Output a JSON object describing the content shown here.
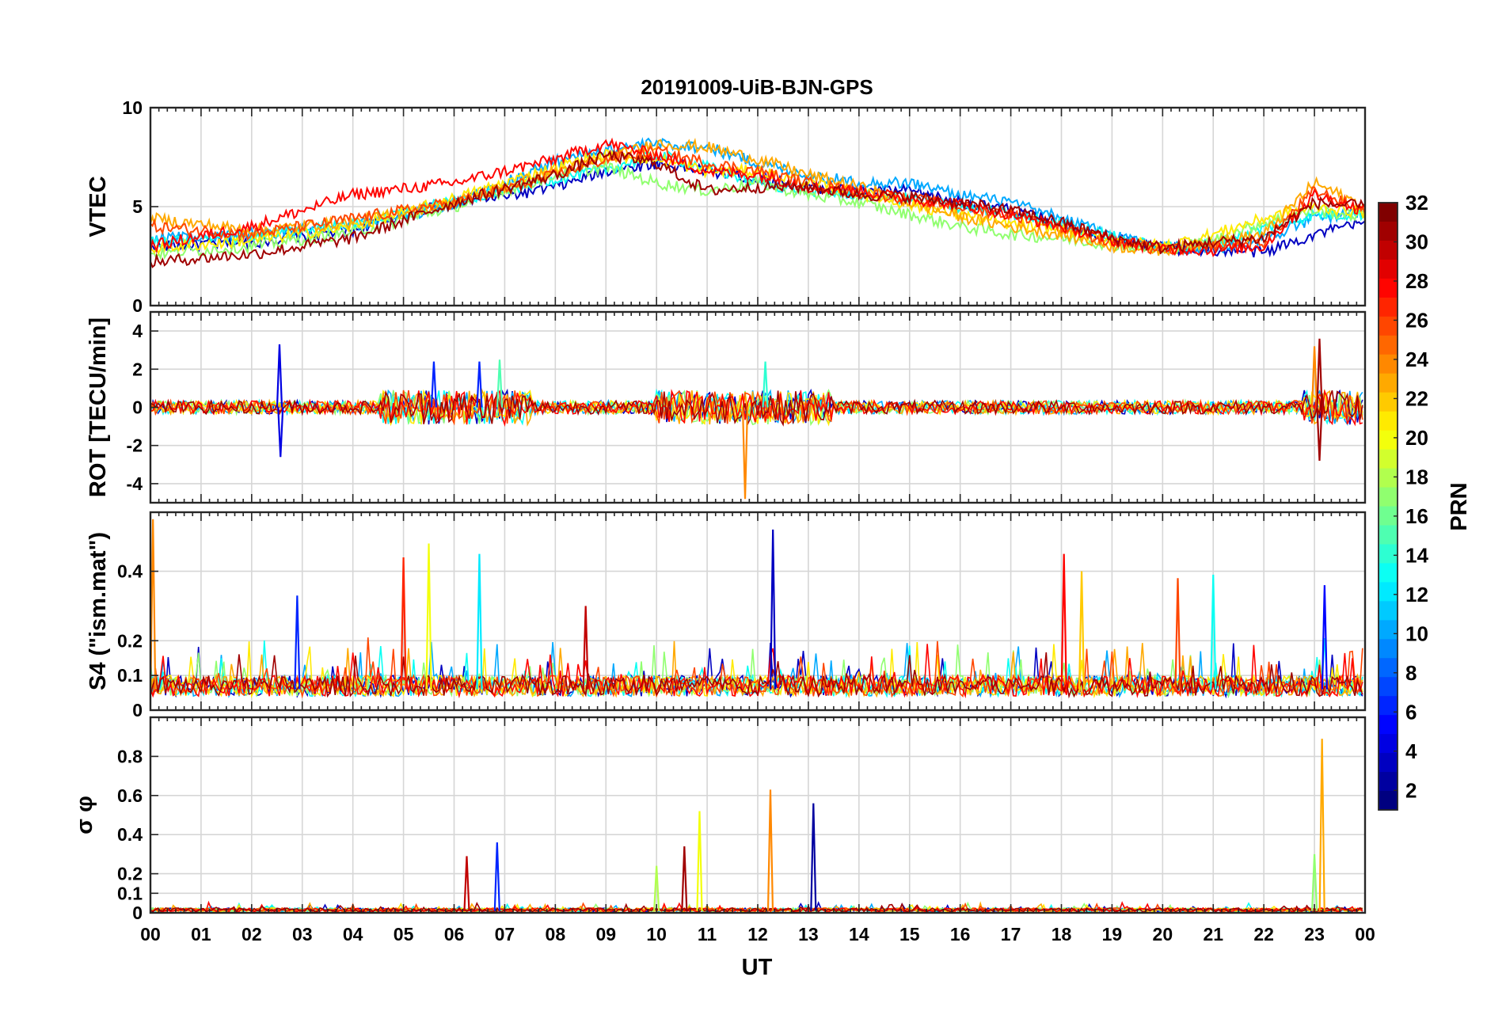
{
  "chart_data": {
    "type": "line",
    "title": "20191009-UiB-BJN-GPS",
    "xlabel": "UT",
    "x_ticks": [
      "00",
      "01",
      "02",
      "03",
      "04",
      "05",
      "06",
      "07",
      "08",
      "09",
      "10",
      "11",
      "12",
      "13",
      "14",
      "15",
      "16",
      "17",
      "18",
      "19",
      "20",
      "21",
      "22",
      "23",
      "00"
    ],
    "xlim_hours": [
      0,
      24
    ],
    "grid": true,
    "colorbar": {
      "label": "PRN",
      "range": [
        1,
        32
      ],
      "ticks": [
        "2",
        "4",
        "6",
        "8",
        "10",
        "12",
        "14",
        "16",
        "18",
        "20",
        "22",
        "24",
        "26",
        "28",
        "30",
        "32"
      ],
      "colormap": "jet",
      "placement": "right"
    },
    "panels": [
      {
        "ylabel": "VTEC",
        "ylim": [
          0,
          10
        ],
        "y_ticks": [
          "0",
          "5",
          "10"
        ],
        "series": [
          {
            "prn": 3,
            "t": [
              0,
              2,
              4,
              5,
              6,
              7,
              8,
              9,
              10,
              11,
              12,
              13,
              14,
              15,
              16,
              17,
              18,
              19,
              20,
              21,
              22,
              23,
              24
            ],
            "v": [
              3.0,
              3.2,
              3.8,
              4.6,
              5.3,
              5.5,
              6.0,
              6.8,
              7.2,
              6.8,
              6.4,
              6.0,
              5.8,
              5.8,
              5.2,
              4.8,
              4.2,
              3.4,
              2.9,
              2.8,
              2.7,
              3.6,
              4.2
            ]
          },
          {
            "prn": 10,
            "t": [
              0,
              2,
              4,
              6,
              8,
              9,
              10,
              11,
              12,
              13,
              14,
              15,
              16,
              17,
              18,
              19,
              20,
              21,
              22,
              23,
              24
            ],
            "v": [
              3.4,
              3.6,
              4.0,
              5.1,
              7.3,
              7.9,
              8.2,
              8.0,
              7.2,
              6.6,
              6.2,
              6.2,
              5.6,
              5.2,
              4.4,
              3.6,
              3.0,
              2.8,
              3.4,
              4.4,
              4.8
            ]
          },
          {
            "prn": 13,
            "t": [
              0,
              2,
              4,
              6,
              8,
              9,
              10,
              11,
              12,
              13,
              14,
              15,
              16,
              17,
              18,
              19,
              20,
              21,
              22,
              23,
              24
            ],
            "v": [
              3.2,
              3.5,
              4.1,
              5.3,
              6.4,
              6.9,
              7.6,
              7.0,
              6.2,
              5.8,
              5.6,
              5.4,
              5.0,
              4.6,
              4.1,
              3.5,
              2.9,
              3.1,
              3.9,
              4.6,
              4.6
            ]
          },
          {
            "prn": 17,
            "t": [
              0,
              2,
              4,
              6,
              8,
              9,
              10,
              11,
              12,
              13,
              14,
              15,
              16,
              17,
              18,
              19,
              20,
              21,
              22,
              23,
              24
            ],
            "v": [
              2.6,
              3.0,
              3.7,
              5.0,
              6.6,
              7.0,
              6.2,
              5.8,
              6.2,
              5.6,
              5.2,
              4.6,
              4.0,
              3.6,
              3.4,
              3.1,
              2.8,
              3.3,
              4.2,
              4.8,
              4.5
            ]
          },
          {
            "prn": 21,
            "t": [
              0,
              2,
              4,
              6,
              8,
              9,
              10,
              11,
              12,
              13,
              14,
              15,
              16,
              17,
              18,
              19,
              20,
              21,
              22,
              23,
              24
            ],
            "v": [
              2.9,
              3.3,
              4.0,
              5.4,
              7.0,
              7.6,
              7.4,
              6.8,
              6.8,
              6.2,
              5.7,
              5.1,
              4.6,
              4.1,
              3.8,
              3.3,
              3.0,
              3.6,
              4.4,
              5.0,
              4.7
            ]
          },
          {
            "prn": 23,
            "t": [
              0,
              2,
              4,
              6,
              8,
              9,
              10,
              11,
              12,
              13,
              14,
              15,
              16,
              17,
              18,
              19,
              20,
              21,
              22,
              23,
              24
            ],
            "v": [
              4.4,
              3.8,
              4.2,
              5.2,
              6.8,
              7.4,
              8.2,
              8.0,
              7.4,
              6.6,
              6.0,
              5.2,
              4.5,
              4.0,
              3.6,
              3.0,
              2.8,
              3.2,
              3.6,
              6.2,
              5.0
            ]
          },
          {
            "prn": 26,
            "t": [
              0,
              2,
              4,
              6,
              8,
              9,
              10,
              11,
              12,
              13,
              14,
              15,
              16,
              17,
              18,
              19,
              20,
              21,
              22,
              23,
              24
            ],
            "v": [
              4.0,
              3.6,
              4.4,
              5.2,
              6.6,
              7.4,
              7.8,
              7.2,
              6.8,
              6.2,
              5.7,
              5.4,
              5.0,
              4.6,
              4.0,
              3.2,
              2.8,
              3.0,
              3.2,
              5.8,
              4.8
            ]
          },
          {
            "prn": 28,
            "t": [
              0,
              2,
              4,
              6,
              8,
              9,
              10,
              11,
              12,
              13,
              14,
              15,
              16,
              17,
              18,
              19,
              20,
              21,
              22,
              23,
              24
            ],
            "v": [
              3.0,
              4.0,
              5.6,
              6.2,
              7.4,
              8.2,
              7.6,
              6.8,
              6.6,
              6.0,
              5.8,
              5.4,
              5.1,
              4.6,
              4.0,
              3.3,
              2.9,
              2.8,
              3.0,
              5.6,
              4.8
            ]
          },
          {
            "prn": 31,
            "t": [
              0,
              2,
              4,
              6,
              8,
              9,
              10,
              11,
              12,
              13,
              14,
              15,
              16,
              17,
              18,
              19,
              20,
              21,
              22,
              23,
              24
            ],
            "v": [
              2.2,
              2.6,
              3.4,
              5.2,
              6.6,
              7.6,
              7.2,
              5.8,
              6.0,
              6.0,
              5.6,
              5.5,
              5.2,
              4.8,
              4.2,
              3.4,
              2.9,
              3.2,
              3.4,
              5.2,
              5.0
            ]
          }
        ]
      },
      {
        "ylabel": "ROT [TECU/min]",
        "ylim": [
          -5,
          5
        ],
        "y_ticks": [
          "-4",
          "-2",
          "0",
          "2",
          "4"
        ],
        "spikes": [
          {
            "prn": 4,
            "t": 2.55,
            "v": 3.3
          },
          {
            "prn": 4,
            "t": 2.57,
            "v": -2.6
          },
          {
            "prn": 6,
            "t": 5.6,
            "v": 2.4
          },
          {
            "prn": 6,
            "t": 6.5,
            "v": 2.4
          },
          {
            "prn": 15,
            "t": 6.9,
            "v": 2.5
          },
          {
            "prn": 24,
            "t": 11.75,
            "v": -4.8
          },
          {
            "prn": 14,
            "t": 12.15,
            "v": 2.4
          },
          {
            "prn": 24,
            "t": 23.0,
            "v": 3.2
          },
          {
            "prn": 31,
            "t": 23.1,
            "v": 3.6
          },
          {
            "prn": 31,
            "t": 23.1,
            "v": -2.8
          }
        ]
      },
      {
        "ylabel": "S4 (\"ism.mat\")",
        "ylim": [
          0,
          0.57
        ],
        "y_ticks": [
          "0",
          "0.1",
          "0.2",
          "0.4"
        ],
        "spikes": [
          {
            "prn": 24,
            "t": 0.05,
            "v": 0.55
          },
          {
            "prn": 6,
            "t": 2.9,
            "v": 0.33
          },
          {
            "prn": 27,
            "t": 5.0,
            "v": 0.44
          },
          {
            "prn": 20,
            "t": 5.5,
            "v": 0.48
          },
          {
            "prn": 12,
            "t": 6.5,
            "v": 0.45
          },
          {
            "prn": 30,
            "t": 8.6,
            "v": 0.3
          },
          {
            "prn": 3,
            "t": 12.3,
            "v": 0.52
          },
          {
            "prn": 28,
            "t": 18.05,
            "v": 0.45
          },
          {
            "prn": 22,
            "t": 18.4,
            "v": 0.4
          },
          {
            "prn": 26,
            "t": 20.3,
            "v": 0.38
          },
          {
            "prn": 13,
            "t": 21.0,
            "v": 0.39
          },
          {
            "prn": 5,
            "t": 23.2,
            "v": 0.36
          }
        ]
      },
      {
        "ylabel": "σ φ",
        "ylim": [
          0,
          1.0
        ],
        "y_ticks": [
          "0",
          "0.1",
          "0.2",
          "0.4",
          "0.6",
          "0.8"
        ],
        "spikes": [
          {
            "prn": 30,
            "t": 6.25,
            "v": 0.29
          },
          {
            "prn": 6,
            "t": 6.85,
            "v": 0.36
          },
          {
            "prn": 18,
            "t": 10.0,
            "v": 0.24
          },
          {
            "prn": 31,
            "t": 10.55,
            "v": 0.34
          },
          {
            "prn": 20,
            "t": 10.85,
            "v": 0.52
          },
          {
            "prn": 24,
            "t": 12.25,
            "v": 0.63
          },
          {
            "prn": 2,
            "t": 13.1,
            "v": 0.56
          },
          {
            "prn": 17,
            "t": 23.0,
            "v": 0.3
          },
          {
            "prn": 23,
            "t": 23.15,
            "v": 0.89
          }
        ]
      }
    ]
  }
}
